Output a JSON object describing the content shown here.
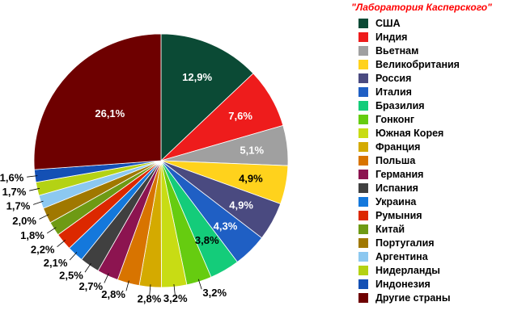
{
  "source_label": "\"Лаборатория Касперского\"",
  "chart_data": {
    "type": "pie",
    "title": "",
    "start_angle_deg": 0,
    "direction": "clockwise",
    "slices": [
      {
        "name": "США",
        "value": 12.9,
        "label": "12,9%",
        "color": "#0b4a35",
        "label_color": "#ffffff"
      },
      {
        "name": "Индия",
        "value": 7.6,
        "label": "7,6%",
        "color": "#ee1c1c",
        "label_color": "#ffffff"
      },
      {
        "name": "Вьетнам",
        "value": 5.1,
        "label": "5,1%",
        "color": "#a0a0a0",
        "label_color": "#ffffff"
      },
      {
        "name": "Великобритания",
        "value": 4.9,
        "label": "4,9%",
        "color": "#ffd21c",
        "label_color": "#000000"
      },
      {
        "name": "Россия",
        "value": 4.9,
        "label": "4,9%",
        "color": "#4a4a80",
        "label_color": "#ffffff"
      },
      {
        "name": "Италия",
        "value": 4.3,
        "label": "4,3%",
        "color": "#1f5fc4",
        "label_color": "#ffffff"
      },
      {
        "name": "Бразилия",
        "value": 3.8,
        "label": "3,8%",
        "color": "#14cc7a",
        "label_color": "#000000"
      },
      {
        "name": "Гонконг",
        "value": 3.2,
        "label": "3,2%",
        "color": "#66cc10",
        "label_color": "#000000"
      },
      {
        "name": "Южная Корея",
        "value": 3.2,
        "label": "3,2%",
        "color": "#c8dc14",
        "label_color": "#000000"
      },
      {
        "name": "Франция",
        "value": 2.8,
        "label": "2,8%",
        "color": "#d4aa00",
        "label_color": "#000000"
      },
      {
        "name": "Польша",
        "value": 2.8,
        "label": "2,8%",
        "color": "#d87400",
        "label_color": "#000000"
      },
      {
        "name": "Германия",
        "value": 2.7,
        "label": "2,7%",
        "color": "#8c1450",
        "label_color": "#000000"
      },
      {
        "name": "Испания",
        "value": 2.5,
        "label": "2,5%",
        "color": "#404040",
        "label_color": "#000000"
      },
      {
        "name": "Украина",
        "value": 2.1,
        "label": "2,1%",
        "color": "#1478dc",
        "label_color": "#000000"
      },
      {
        "name": "Румыния",
        "value": 2.2,
        "label": "2,2%",
        "color": "#dc2800",
        "label_color": "#000000"
      },
      {
        "name": "Китай",
        "value": 1.8,
        "label": "1,8%",
        "color": "#6e9a14",
        "label_color": "#000000"
      },
      {
        "name": "Португалия",
        "value": 2.0,
        "label": "2,0%",
        "color": "#a07800",
        "label_color": "#000000"
      },
      {
        "name": "Аргентина",
        "value": 1.7,
        "label": "1,7%",
        "color": "#8cc8f0",
        "label_color": "#000000"
      },
      {
        "name": "Нидерланды",
        "value": 1.7,
        "label": "1,7%",
        "color": "#b4d214",
        "label_color": "#000000"
      },
      {
        "name": "Индонезия",
        "value": 1.6,
        "label": "1,6%",
        "color": "#1450b4",
        "label_color": "#000000"
      },
      {
        "name": "Другие страны",
        "value": 26.1,
        "label": "26,1%",
        "color": "#6e0000",
        "label_color": "#ffffff"
      }
    ],
    "legend_position": "right"
  }
}
